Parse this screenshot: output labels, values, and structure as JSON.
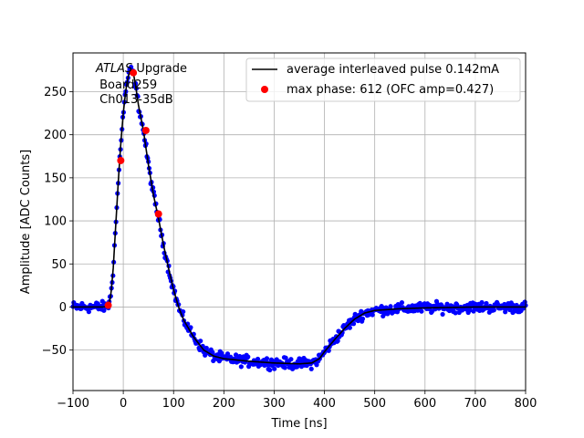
{
  "chart_data": {
    "type": "line",
    "title": "",
    "xlabel": "Time [ns]",
    "ylabel": "Amplitude [ADC Counts]",
    "xlim": [
      -100,
      800
    ],
    "ylim": [
      -97,
      295
    ],
    "xticks": [
      -100,
      0,
      100,
      200,
      300,
      400,
      500,
      600,
      700,
      800
    ],
    "yticks": [
      -50,
      0,
      50,
      100,
      150,
      200,
      250
    ],
    "grid": true,
    "legend_position": "top-right",
    "annotation": {
      "line1_italic": "ATLAS",
      "line1_rest": " Upgrade",
      "line2": " Board259",
      "line3": " Ch013-35dB"
    },
    "series": [
      {
        "name": "average interleaved pulse 0.142mA",
        "kind": "line",
        "color": "#000000",
        "x": [
          -100,
          -40,
          -30,
          -25,
          -20,
          -15,
          -10,
          -5,
          0,
          5,
          10,
          15,
          20,
          25,
          30,
          40,
          50,
          60,
          70,
          80,
          90,
          100,
          110,
          120,
          140,
          160,
          180,
          200,
          250,
          300,
          350,
          375,
          390,
          400,
          420,
          440,
          460,
          480,
          500,
          550,
          600,
          700,
          800
        ],
        "y": [
          0,
          0,
          1,
          12,
          45,
          95,
          145,
          190,
          225,
          252,
          268,
          276,
          272,
          255,
          235,
          205,
          165,
          130,
          103,
          72,
          45,
          20,
          0,
          -15,
          -35,
          -50,
          -57,
          -60,
          -63,
          -65,
          -66,
          -65,
          -60,
          -52,
          -38,
          -25,
          -14,
          -7,
          -4,
          -2,
          -1,
          0,
          0
        ]
      },
      {
        "name": "",
        "kind": "noisy-samples",
        "color": "#0000ff",
        "noise_amplitude": 5
      },
      {
        "name": "max phase: 612 (OFC amp=0.427)",
        "kind": "scatter",
        "color": "#ff0000",
        "x": [
          -30,
          -5,
          20,
          45,
          70
        ],
        "y": [
          2,
          170,
          272,
          205,
          108
        ]
      }
    ]
  }
}
